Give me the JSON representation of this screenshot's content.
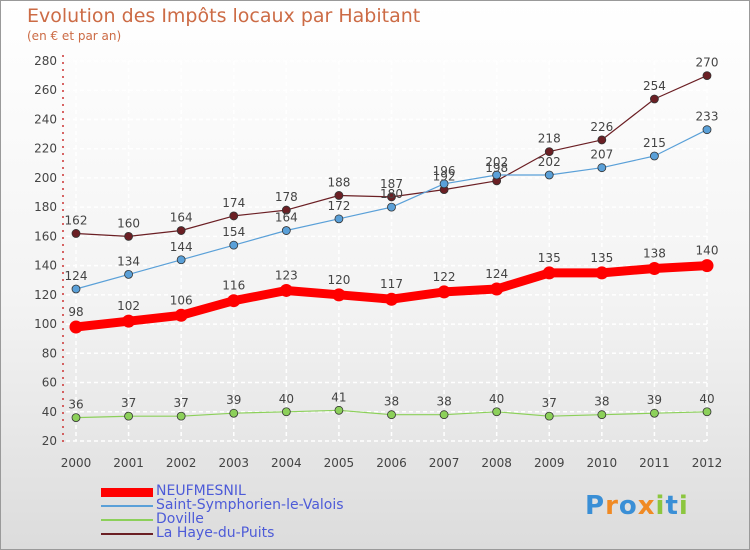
{
  "title": "Evolution des Impôts locaux par Habitant",
  "subtitle": "(en € et par an)",
  "colors": {
    "title": "#cc6b45",
    "axis": "#cc3333",
    "grid": "#ffffff",
    "label": "#444444",
    "legend_text": "#4d5bd8"
  },
  "logo": {
    "letters": [
      "P",
      "r",
      "o",
      "x",
      "i",
      "t",
      "i"
    ],
    "colors": [
      "#3a8fd6",
      "#f08a24",
      "#3a8fd6",
      "#f08a24",
      "#8cc63f",
      "#3a8fd6",
      "#8cc63f"
    ]
  },
  "chart_data": {
    "type": "line",
    "x": [
      "2000",
      "2001",
      "2002",
      "2003",
      "2004",
      "2005",
      "2006",
      "2007",
      "2008",
      "2009",
      "2010",
      "2011",
      "2012"
    ],
    "ylim": [
      20,
      280
    ],
    "yticks": [
      20,
      40,
      60,
      80,
      100,
      120,
      140,
      160,
      180,
      200,
      220,
      240,
      260,
      280
    ],
    "grid": true,
    "legend": "bottom-left",
    "series": [
      {
        "name": "La Haye-du-Puits",
        "color": "#6b1f24",
        "width": 1.2,
        "marker": 4,
        "values": [
          162,
          160,
          164,
          174,
          178,
          188,
          187,
          192,
          198,
          218,
          226,
          254,
          270
        ]
      },
      {
        "name": "Saint-Symphorien-le-Valois",
        "color": "#5aa0d8",
        "width": 1.2,
        "marker": 4,
        "values": [
          124,
          134,
          144,
          154,
          164,
          172,
          180,
          196,
          202,
          202,
          207,
          215,
          233
        ]
      },
      {
        "name": "Doville",
        "color": "#8cd05a",
        "width": 1.2,
        "marker": 4,
        "values": [
          36,
          37,
          37,
          39,
          40,
          41,
          38,
          38,
          40,
          37,
          38,
          39,
          40
        ]
      },
      {
        "name": "NEUFMESNIL",
        "color": "#ff0000",
        "width": 9,
        "marker": 6.5,
        "values": [
          98,
          102,
          106,
          116,
          123,
          120,
          117,
          122,
          124,
          135,
          135,
          138,
          140
        ]
      }
    ],
    "legend_order": [
      "NEUFMESNIL",
      "Saint-Symphorien-le-Valois",
      "Doville",
      "La Haye-du-Puits"
    ]
  }
}
